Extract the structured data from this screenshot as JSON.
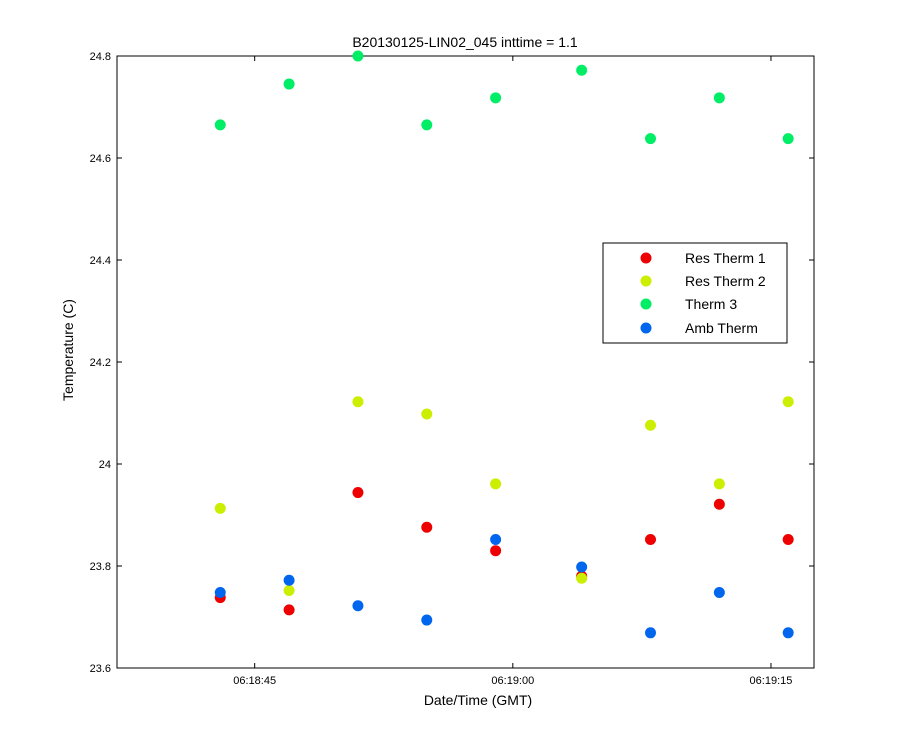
{
  "chart_data": {
    "type": "scatter",
    "title": "B20130125-LIN02_045 inttime = 1.1",
    "xlabel": "Date/Time (GMT)",
    "ylabel": "Temperature (C)",
    "x_axis_type": "time",
    "xlim": [
      "06:18:37",
      "06:19:17.5"
    ],
    "ylim": [
      23.6,
      24.8
    ],
    "x_ticks": [
      "06:18:45",
      "06:19:00",
      "06:19:15"
    ],
    "y_ticks": [
      23.6,
      23.8,
      24,
      24.2,
      24.4,
      24.6,
      24.8
    ],
    "y_tick_labels": [
      "23.6",
      "23.8",
      "24",
      "24.2",
      "24.4",
      "24.6",
      "24.8"
    ],
    "grid": false,
    "legend_position": "right",
    "x": [
      "06:18:43",
      "06:18:47",
      "06:18:51",
      "06:18:55",
      "06:18:59",
      "06:19:04",
      "06:19:08",
      "06:19:12",
      "06:19:16"
    ],
    "series": [
      {
        "name": "Res Therm 1",
        "color": "#ee0000",
        "values": [
          23.738,
          23.714,
          23.944,
          23.876,
          23.83,
          23.78,
          23.852,
          23.921,
          23.852
        ]
      },
      {
        "name": "Res Therm 2",
        "color": "#ccee00",
        "values": [
          23.913,
          23.752,
          24.122,
          24.098,
          23.961,
          23.776,
          24.076,
          23.961,
          24.122
        ]
      },
      {
        "name": "Therm 3",
        "color": "#00ee66",
        "values": [
          24.665,
          24.745,
          24.8,
          24.665,
          24.718,
          24.772,
          24.638,
          24.718,
          24.638
        ]
      },
      {
        "name": "Amb Therm",
        "color": "#0066ee",
        "values": [
          23.748,
          23.772,
          23.722,
          23.694,
          23.852,
          23.798,
          23.669,
          23.748,
          23.669
        ]
      }
    ]
  }
}
